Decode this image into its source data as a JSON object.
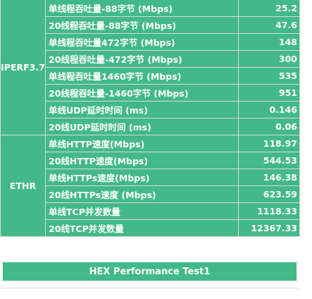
{
  "groups": [
    {
      "label": "IPERF3.7",
      "rows": [
        {
          "metric": "单线程吞吐量-88字节 (Mbps)",
          "value": "25.2"
        },
        {
          "metric": "20线程吞吐量-88字节 (Mbps)",
          "value": "47.6"
        },
        {
          "metric": "单线程吞吐量472字节 (Mbps)",
          "value": "148"
        },
        {
          "metric": "20线程吞吐量-472字节 (Mbps)",
          "value": "300"
        },
        {
          "metric": "单线程吞吐量1460字节 (Mbps)",
          "value": "535"
        },
        {
          "metric": "20线程吞吐量-1460字节 (Mbps)",
          "value": "951"
        },
        {
          "metric": "单线UDP延时时间 (ms)",
          "value": "0.146"
        },
        {
          "metric": "20线UDP延时时间 (ms)",
          "value": "0.06"
        }
      ]
    },
    {
      "label": "ETHR",
      "rows": [
        {
          "metric": "单线HTTP速度(Mbps)",
          "value": "118.97"
        },
        {
          "metric": "20线HTTP速度(Mbps)",
          "value": "544.53"
        },
        {
          "metric": "单线HTTPs速度(Mbps)",
          "value": "146.38"
        },
        {
          "metric": "20线HTTPs速度 (Mbps)",
          "value": "623.59"
        },
        {
          "metric": "单线TCP并发数量",
          "value": "1118.33"
        },
        {
          "metric": "20线TCP并发数量",
          "value": "12367.33"
        }
      ]
    }
  ],
  "footer": {
    "title": "HEX Performance Test1"
  }
}
